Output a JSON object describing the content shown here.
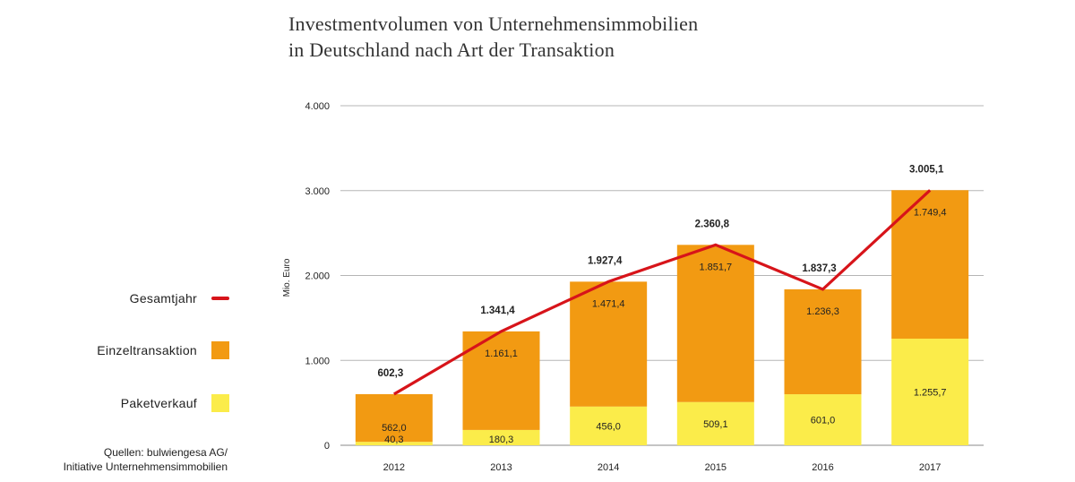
{
  "title": {
    "line1": "Investmentvolumen von Unternehmensimmobilien",
    "line2": "in Deutschland nach Art der Transaktion"
  },
  "legend": [
    {
      "label": "Gesamtjahr",
      "kind": "line",
      "color": "#d7141a"
    },
    {
      "label": "Einzeltransaktion",
      "kind": "box",
      "color": "#f29a12"
    },
    {
      "label": "Paketverkauf",
      "kind": "box",
      "color": "#fbec4a"
    }
  ],
  "source": {
    "line1": "Quellen: bulwiengesa AG/",
    "line2": "Initiative Unternehmensimmobilien"
  },
  "chart_data": {
    "type": "bar",
    "stacked": true,
    "categories": [
      "2012",
      "2013",
      "2014",
      "2015",
      "2016",
      "2017"
    ],
    "ylabel": "Mio. Euro",
    "ylim": [
      0,
      4000
    ],
    "yticks": [
      {
        "value": 0,
        "label": "0"
      },
      {
        "value": 1000,
        "label": "1.000"
      },
      {
        "value": 2000,
        "label": "2.000"
      },
      {
        "value": 3000,
        "label": "3.000"
      },
      {
        "value": 4000,
        "label": "4.000"
      }
    ],
    "grid": true,
    "legend_position": "left",
    "series": [
      {
        "name": "Paketverkauf",
        "type": "bar",
        "color": "#fbec4a",
        "values": [
          40.3,
          180.3,
          456.0,
          509.1,
          601.0,
          1255.7
        ],
        "labels": [
          "40,3",
          "180,3",
          "456,0",
          "509,1",
          "601,0",
          "1.255,7"
        ]
      },
      {
        "name": "Einzeltransaktion",
        "type": "bar",
        "color": "#f29a12",
        "values": [
          562.0,
          1161.1,
          1471.4,
          1851.7,
          1236.3,
          1749.4
        ],
        "labels": [
          "562,0",
          "1.161,1",
          "1.471,4",
          "1.851,7",
          "1.236,3",
          "1.749,4"
        ]
      },
      {
        "name": "Gesamtjahr",
        "type": "line",
        "color": "#d7141a",
        "values": [
          602.3,
          1341.4,
          1927.4,
          2360.8,
          1837.3,
          3005.1
        ],
        "labels": [
          "602,3",
          "1.341,4",
          "1.927,4",
          "2.360,8",
          "1.837,3",
          "3.005,1"
        ]
      }
    ]
  }
}
